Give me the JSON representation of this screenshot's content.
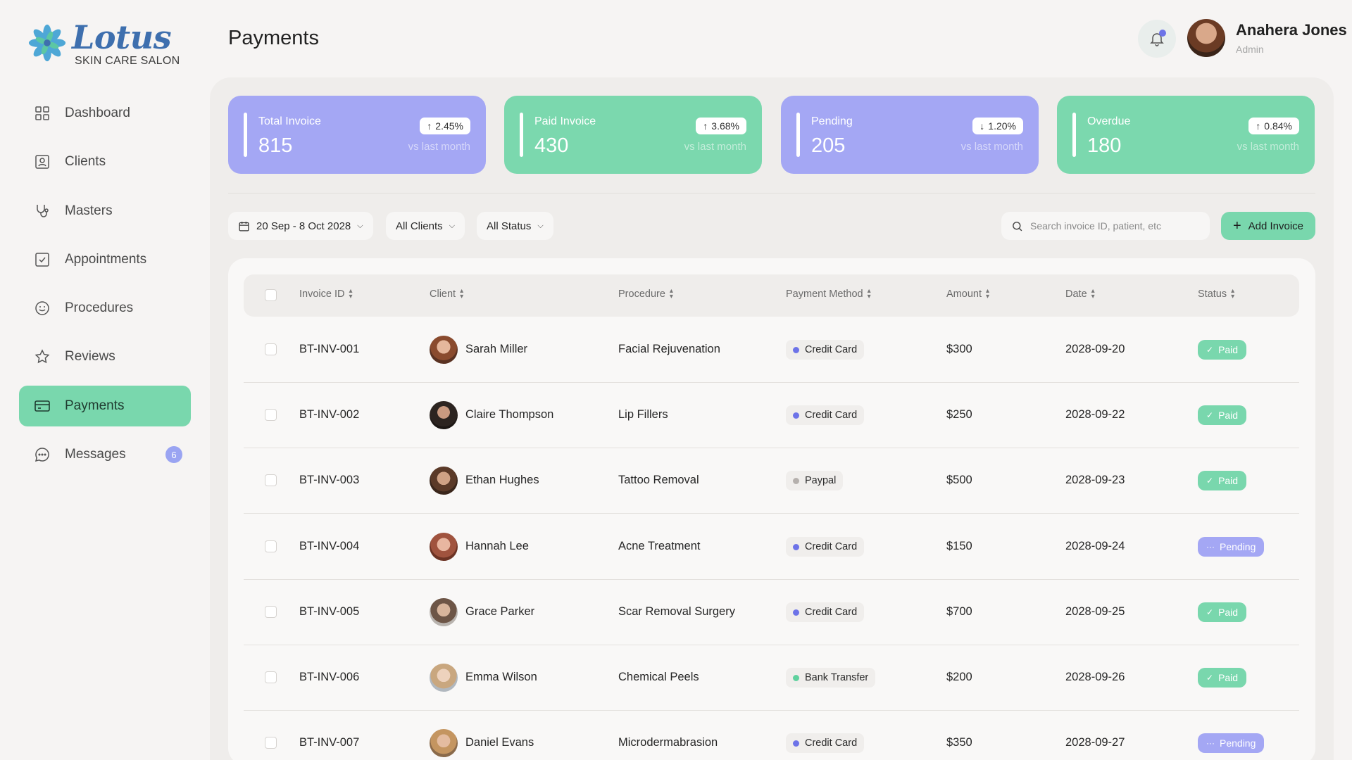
{
  "brand": {
    "name": "Lotus",
    "subtitle": "SKIN CARE SALON"
  },
  "sidebar": {
    "items": [
      {
        "label": "Dashboard",
        "icon": "grid-icon"
      },
      {
        "label": "Clients",
        "icon": "id-card-icon"
      },
      {
        "label": "Masters",
        "icon": "stethoscope-icon"
      },
      {
        "label": "Appointments",
        "icon": "calendar-check-icon"
      },
      {
        "label": "Procedures",
        "icon": "face-icon"
      },
      {
        "label": "Reviews",
        "icon": "star-icon"
      },
      {
        "label": "Payments",
        "icon": "card-icon",
        "active": true
      },
      {
        "label": "Messages",
        "icon": "chat-icon",
        "badge": "6"
      }
    ]
  },
  "header": {
    "title": "Payments"
  },
  "user": {
    "name": "Anahera Jones",
    "role": "Admin"
  },
  "stats": [
    {
      "label": "Total Invoice",
      "value": "815",
      "change": "2.45%",
      "direction": "up",
      "note": "vs last month",
      "color": "#a4a7f4"
    },
    {
      "label": "Paid Invoice",
      "value": "430",
      "change": "3.68%",
      "direction": "up",
      "note": "vs last month",
      "color": "#7bd8ae"
    },
    {
      "label": "Pending",
      "value": "205",
      "change": "1.20%",
      "direction": "down",
      "note": "vs last month",
      "color": "#a4a7f4"
    },
    {
      "label": "Overdue",
      "value": "180",
      "change": "0.84%",
      "direction": "up",
      "note": "vs last month",
      "color": "#7bd8ae"
    }
  ],
  "filters": {
    "date_range": "20 Sep - 8 Oct 2028",
    "clients": "All Clients",
    "status": "All Status",
    "search_placeholder": "Search invoice ID, patient, etc",
    "add_button": "Add Invoice"
  },
  "table": {
    "columns": [
      "Invoice ID",
      "Client",
      "Procedure",
      "Payment Method",
      "Amount",
      "Date",
      "Status"
    ],
    "rows": [
      {
        "id": "BT-INV-001",
        "client": "Sarah Miller",
        "procedure": "Facial Rejuvenation",
        "method": "Credit Card",
        "amount": "$300",
        "date": "2028-09-20",
        "status": "Paid"
      },
      {
        "id": "BT-INV-002",
        "client": "Claire Thompson",
        "procedure": "Lip Fillers",
        "method": "Credit Card",
        "amount": "$250",
        "date": "2028-09-22",
        "status": "Paid"
      },
      {
        "id": "BT-INV-003",
        "client": "Ethan Hughes",
        "procedure": "Tattoo Removal",
        "method": "Paypal",
        "amount": "$500",
        "date": "2028-09-23",
        "status": "Paid"
      },
      {
        "id": "BT-INV-004",
        "client": "Hannah Lee",
        "procedure": "Acne Treatment",
        "method": "Credit Card",
        "amount": "$150",
        "date": "2028-09-24",
        "status": "Pending"
      },
      {
        "id": "BT-INV-005",
        "client": "Grace Parker",
        "procedure": "Scar Removal Surgery",
        "method": "Credit Card",
        "amount": "$700",
        "date": "2028-09-25",
        "status": "Paid"
      },
      {
        "id": "BT-INV-006",
        "client": "Emma Wilson",
        "procedure": "Chemical Peels",
        "method": "Bank Transfer",
        "amount": "$200",
        "date": "2028-09-26",
        "status": "Paid"
      },
      {
        "id": "BT-INV-007",
        "client": "Daniel Evans",
        "procedure": "Microdermabrasion",
        "method": "Credit Card",
        "amount": "$350",
        "date": "2028-09-27",
        "status": "Pending"
      }
    ]
  },
  "colors": {
    "accent_green": "#79d7ad",
    "accent_purple": "#a4a7f4",
    "credit_card": "#6d73e8",
    "paypal": "#b5b0ad",
    "bank_transfer": "#5fd19e"
  }
}
